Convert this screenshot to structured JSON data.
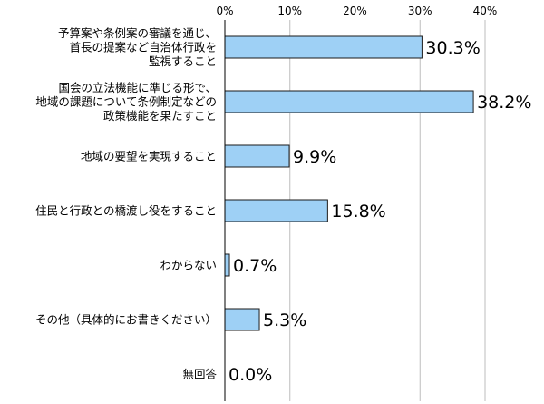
{
  "chart_data": {
    "type": "bar",
    "orientation": "horizontal",
    "title": "",
    "xlabel": "",
    "ylabel": "",
    "xlim": [
      0,
      40
    ],
    "x_ticks": [
      "0%",
      "10%",
      "20%",
      "30%",
      "40%"
    ],
    "x_tick_values": [
      0,
      10,
      20,
      30,
      40
    ],
    "grid": true,
    "legend": "none",
    "bar_color": "#9ed0f5",
    "categories": [
      [
        "予算案や条例案の審議を通じ、",
        "首長の提案など自治体行政を",
        "監視すること"
      ],
      [
        "国会の立法機能に準じる形で、",
        "地域の課題について条例制定などの",
        "政策機能を果たすこと"
      ],
      [
        "地域の要望を実現すること"
      ],
      [
        "住民と行政との橋渡し役をすること"
      ],
      [
        "わからない"
      ],
      [
        "その他（具体的にお書きください）"
      ],
      [
        "無回答"
      ]
    ],
    "values": [
      30.3,
      38.2,
      9.9,
      15.8,
      0.7,
      5.3,
      0.0
    ],
    "value_labels": [
      "30.3%",
      "38.2%",
      "9.9%",
      "15.8%",
      "0.7%",
      "5.3%",
      "0.0%"
    ]
  }
}
